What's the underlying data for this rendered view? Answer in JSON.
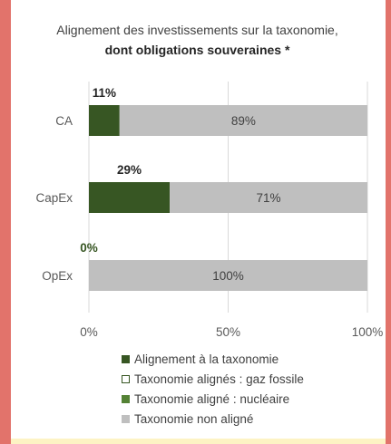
{
  "chart_data": {
    "type": "bar",
    "orientation": "horizontal",
    "stacked": true,
    "title": "Alignement des investissements sur la taxonomie,",
    "subtitle": "dont obligations souveraines *",
    "categories": [
      "CA",
      "CapEx",
      "OpEx"
    ],
    "series": [
      {
        "name": "Alignement à la taxonomie",
        "color": "#375623",
        "values": [
          11,
          29,
          0
        ]
      },
      {
        "name": "Taxonomie alignés : gaz fossile",
        "color": "#ffffff",
        "border": "#375623",
        "values": [
          0,
          0,
          0
        ]
      },
      {
        "name": "Taxonomie aligné : nucléaire",
        "color": "#548235",
        "values": [
          0,
          0,
          0
        ]
      },
      {
        "name": "Taxonomie non aligné",
        "color": "#bfbfbf",
        "values": [
          89,
          71,
          100
        ]
      }
    ],
    "aligned_labels": [
      "11%",
      "29%",
      "0%"
    ],
    "non_aligned_labels": [
      "89%",
      "71%",
      "100%"
    ],
    "xticks": [
      "0%",
      "50%",
      "100%"
    ],
    "xlim": [
      0,
      100
    ],
    "grid": true,
    "legend_position": "bottom"
  }
}
